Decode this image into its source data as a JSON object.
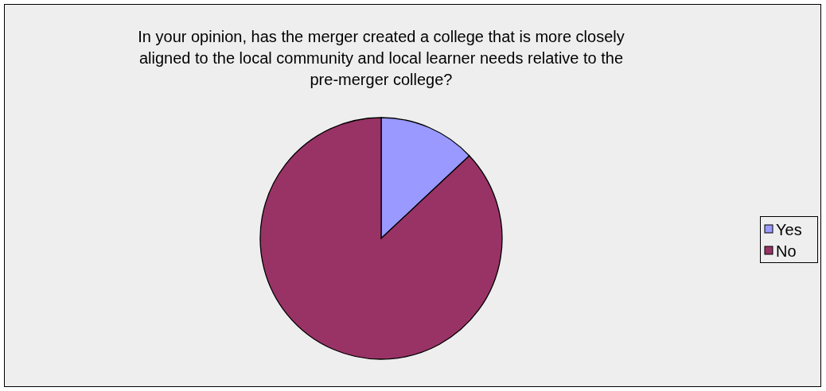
{
  "chart_data": {
    "type": "pie",
    "title": "In your opinion, has the merger created a college that is more closely aligned to the local community and local learner needs relative to the pre-merger college?",
    "categories": [
      "Yes",
      "No"
    ],
    "values": [
      13,
      87
    ],
    "colors": [
      "#9999ff",
      "#993366"
    ],
    "legend": "right"
  }
}
